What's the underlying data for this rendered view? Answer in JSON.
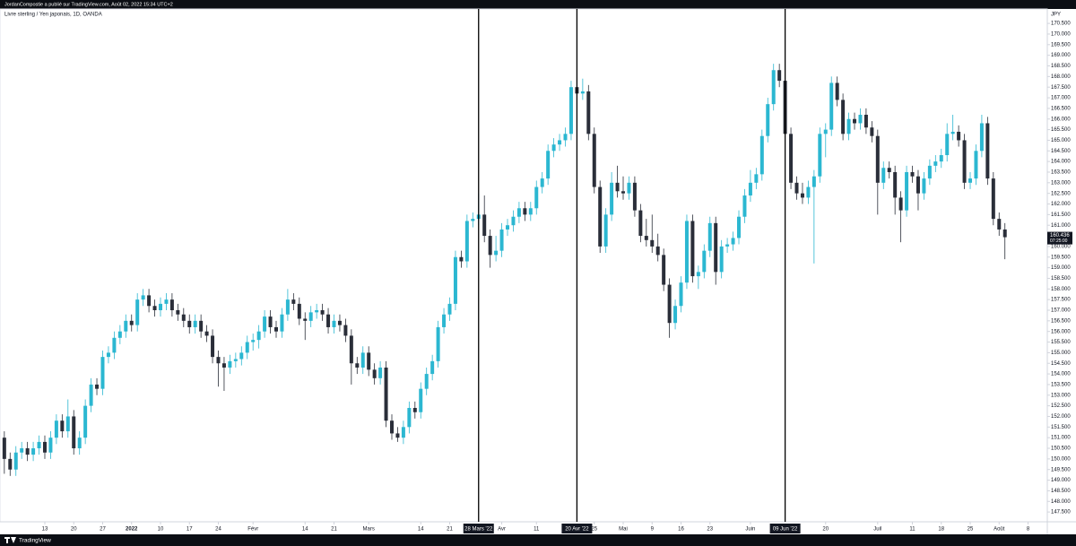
{
  "header": {
    "published": "JordanCompostie a publié sur TradingView.com, Août 02, 2022 15:34 UTC+2",
    "symbol": "Livre sterling / Yen japonais, 1D, OANDA",
    "brand": "TradingView"
  },
  "chart_data": {
    "type": "candlestick",
    "currency": "JPY",
    "up_color": "#2bb7d1",
    "down_color": "#2a2e39",
    "xlim": [
      -0.75,
      180.33
    ],
    "ylim": [
      147.04,
      171.18
    ],
    "yticks": [
      {
        "value": 170.5,
        "label": "170.500"
      },
      {
        "value": 170,
        "label": "170.000"
      },
      {
        "value": 169.5,
        "label": "169.500"
      },
      {
        "value": 169,
        "label": "169.000"
      },
      {
        "value": 168.5,
        "label": "168.500"
      },
      {
        "value": 168,
        "label": "168.000"
      },
      {
        "value": 167.5,
        "label": "167.500"
      },
      {
        "value": 167,
        "label": "167.000"
      },
      {
        "value": 166.5,
        "label": "166.500"
      },
      {
        "value": 166,
        "label": "166.000"
      },
      {
        "value": 165.5,
        "label": "165.500"
      },
      {
        "value": 165,
        "label": "165.000"
      },
      {
        "value": 164.5,
        "label": "164.500"
      },
      {
        "value": 164,
        "label": "164.000"
      },
      {
        "value": 163.5,
        "label": "163.500"
      },
      {
        "value": 163,
        "label": "163.000"
      },
      {
        "value": 162.5,
        "label": "162.500"
      },
      {
        "value": 162,
        "label": "162.000"
      },
      {
        "value": 161.5,
        "label": "161.500"
      },
      {
        "value": 161,
        "label": "161.000"
      },
      {
        "value": 160.5,
        "label": "160.500"
      },
      {
        "value": 160,
        "label": "160.000"
      },
      {
        "value": 159.5,
        "label": "159.500"
      },
      {
        "value": 159,
        "label": "159.000"
      },
      {
        "value": 158.5,
        "label": "158.500"
      },
      {
        "value": 158,
        "label": "158.000"
      },
      {
        "value": 157.5,
        "label": "157.500"
      },
      {
        "value": 157,
        "label": "157.000"
      },
      {
        "value": 156.5,
        "label": "156.500"
      },
      {
        "value": 156,
        "label": "156.000"
      },
      {
        "value": 155.5,
        "label": "155.500"
      },
      {
        "value": 155,
        "label": "155.000"
      },
      {
        "value": 154.5,
        "label": "154.500"
      },
      {
        "value": 154,
        "label": "154.000"
      },
      {
        "value": 153.5,
        "label": "153.500"
      },
      {
        "value": 153,
        "label": "153.000"
      },
      {
        "value": 152.5,
        "label": "152.500"
      },
      {
        "value": 152,
        "label": "152.000"
      },
      {
        "value": 151.5,
        "label": "151.500"
      },
      {
        "value": 151,
        "label": "151.000"
      },
      {
        "value": 150.5,
        "label": "150.500"
      },
      {
        "value": 150,
        "label": "150.000"
      },
      {
        "value": 149.5,
        "label": "149.500"
      },
      {
        "value": 149,
        "label": "149.000"
      },
      {
        "value": 148.5,
        "label": "148.500"
      },
      {
        "value": 148,
        "label": "148.000"
      },
      {
        "value": 147.5,
        "label": "147.500"
      }
    ],
    "xticks": [
      {
        "value": 7,
        "label": "13"
      },
      {
        "value": 12,
        "label": "20"
      },
      {
        "value": 17,
        "label": "27"
      },
      {
        "value": 22,
        "label": "2022"
      },
      {
        "value": 27,
        "label": "10"
      },
      {
        "value": 32,
        "label": "17"
      },
      {
        "value": 37,
        "label": "24"
      },
      {
        "value": 43,
        "label": "Févr"
      },
      {
        "value": 52,
        "label": "14"
      },
      {
        "value": 57,
        "label": "21"
      },
      {
        "value": 63,
        "label": "Mars"
      },
      {
        "value": 72,
        "label": "14"
      },
      {
        "value": 77,
        "label": "21"
      },
      {
        "value": 86,
        "label": "Avr"
      },
      {
        "value": 92,
        "label": "11"
      },
      {
        "value": 102,
        "label": "25"
      },
      {
        "value": 107,
        "label": "Mai"
      },
      {
        "value": 112,
        "label": "9"
      },
      {
        "value": 117,
        "label": "16"
      },
      {
        "value": 122,
        "label": "23"
      },
      {
        "value": 129,
        "label": "Juin"
      },
      {
        "value": 142,
        "label": "20"
      },
      {
        "value": 151,
        "label": "Juil"
      },
      {
        "value": 157,
        "label": "11"
      },
      {
        "value": 162,
        "label": "18"
      },
      {
        "value": 167,
        "label": "25"
      },
      {
        "value": 172,
        "label": "Août"
      },
      {
        "value": 177,
        "label": "8"
      }
    ],
    "markers": [
      {
        "value": 82,
        "label": "28 Mars '22"
      },
      {
        "value": 99,
        "label": "20 Avr '22"
      },
      {
        "value": 135,
        "label": "09 Jun '22"
      }
    ],
    "last_price": 160.436,
    "countdown": "07:25:00",
    "ohlc": [
      [
        151,
        151.3,
        149.3,
        150
      ],
      [
        150,
        150.3,
        149.2,
        149.5
      ],
      [
        149.5,
        150.6,
        149.2,
        150.3
      ],
      [
        150.3,
        150.8,
        150,
        150.5
      ],
      [
        150.5,
        150.8,
        149.9,
        150.2
      ],
      [
        150.2,
        150.8,
        149.9,
        150.5
      ],
      [
        150.5,
        151.1,
        150.2,
        150.8
      ],
      [
        150.8,
        151.1,
        150,
        150.3
      ],
      [
        150.3,
        151.3,
        150,
        151
      ],
      [
        151,
        152.1,
        150.7,
        151.8
      ],
      [
        151.8,
        152.1,
        151,
        151.3
      ],
      [
        151.3,
        152.8,
        151,
        152
      ],
      [
        152,
        152.3,
        150.2,
        150.5
      ],
      [
        150.5,
        151.3,
        150.2,
        151
      ],
      [
        151,
        152.8,
        150.7,
        152.5
      ],
      [
        152.5,
        153.8,
        152.2,
        153.5
      ],
      [
        153.5,
        153.8,
        153,
        153.3
      ],
      [
        153.3,
        155.1,
        153,
        154.8
      ],
      [
        154.8,
        155.3,
        154.5,
        155
      ],
      [
        155,
        156,
        154.7,
        155.7
      ],
      [
        155.7,
        156.3,
        155.4,
        156
      ],
      [
        156,
        156.8,
        155.7,
        156.5
      ],
      [
        156.5,
        156.8,
        156,
        156.3
      ],
      [
        156.3,
        157.8,
        156,
        157.5
      ],
      [
        157.5,
        158,
        157.2,
        157.7
      ],
      [
        157.7,
        158,
        156.9,
        157.2
      ],
      [
        157.2,
        157.5,
        156.7,
        157
      ],
      [
        157,
        157.6,
        156.7,
        157.3
      ],
      [
        157.3,
        157.8,
        157,
        157.5
      ],
      [
        157.5,
        157.8,
        156.7,
        157
      ],
      [
        157,
        157.3,
        156.5,
        156.8
      ],
      [
        156.8,
        157.1,
        156.2,
        156.5
      ],
      [
        156.5,
        156.8,
        155.9,
        156.2
      ],
      [
        156.2,
        156.8,
        155.9,
        156.5
      ],
      [
        156.5,
        156.8,
        155.7,
        156
      ],
      [
        156,
        156.3,
        155.5,
        155.8
      ],
      [
        155.8,
        156.1,
        154.5,
        154.8
      ],
      [
        154.8,
        155.1,
        153.4,
        154.5
      ],
      [
        154.5,
        154.8,
        153.2,
        154.3
      ],
      [
        154.3,
        154.9,
        154,
        154.6
      ],
      [
        154.6,
        155,
        154.3,
        154.7
      ],
      [
        154.7,
        155.3,
        154.4,
        155
      ],
      [
        155,
        155.8,
        154.7,
        155.5
      ],
      [
        155.5,
        155.9,
        155.1,
        155.6
      ],
      [
        155.6,
        156.3,
        155.2,
        156
      ],
      [
        156,
        157,
        155.7,
        156.7
      ],
      [
        156.7,
        157,
        155.9,
        156.2
      ],
      [
        156.2,
        156.5,
        155.7,
        156
      ],
      [
        156,
        157.1,
        155.7,
        156.8
      ],
      [
        156.8,
        158,
        156.5,
        157.5
      ],
      [
        157.5,
        157.8,
        157,
        157.3
      ],
      [
        157.3,
        157.6,
        156.3,
        156.6
      ],
      [
        156.6,
        156.9,
        155.6,
        156.5
      ],
      [
        156.5,
        157.2,
        156.2,
        156.9
      ],
      [
        156.9,
        157.3,
        156.6,
        157
      ],
      [
        157,
        157.3,
        156.5,
        156.8
      ],
      [
        156.8,
        157.1,
        155.9,
        156.2
      ],
      [
        156.2,
        156.8,
        155.9,
        156.5
      ],
      [
        156.5,
        156.8,
        156,
        156.3
      ],
      [
        156.3,
        156.6,
        155.5,
        155.8
      ],
      [
        155.8,
        156.1,
        153.5,
        154.5
      ],
      [
        154.5,
        154.8,
        154,
        154.3
      ],
      [
        154.3,
        155.3,
        154,
        155
      ],
      [
        155,
        155.3,
        153.9,
        154.2
      ],
      [
        154.2,
        154.5,
        153.5,
        153.8
      ],
      [
        153.8,
        154.6,
        153.5,
        154.3
      ],
      [
        154.3,
        154.6,
        151.5,
        151.8
      ],
      [
        151.8,
        152.1,
        150.9,
        151.2
      ],
      [
        151.2,
        151.5,
        150.8,
        151
      ],
      [
        151,
        151.8,
        150.7,
        151.5
      ],
      [
        151.5,
        152.7,
        151.2,
        152.4
      ],
      [
        152.4,
        152.7,
        151.9,
        152.2
      ],
      [
        152.2,
        153.6,
        151.9,
        153.3
      ],
      [
        153.3,
        154.3,
        153,
        154
      ],
      [
        154,
        154.9,
        153.7,
        154.6
      ],
      [
        154.6,
        156.5,
        154.3,
        156.2
      ],
      [
        156.2,
        157.1,
        155.9,
        156.8
      ],
      [
        156.8,
        157.6,
        156.5,
        157.3
      ],
      [
        157.3,
        159.8,
        157,
        159.5
      ],
      [
        159.5,
        159.8,
        159,
        159.3
      ],
      [
        159.3,
        161.5,
        159,
        161.2
      ],
      [
        161.2,
        161.6,
        160.9,
        161.3
      ],
      [
        161.3,
        162.5,
        161,
        161.5
      ],
      [
        161.5,
        162.4,
        160.2,
        160.5
      ],
      [
        160.5,
        160.8,
        159,
        159.6
      ],
      [
        159.6,
        160.5,
        159.3,
        159.8
      ],
      [
        159.8,
        161.1,
        159.5,
        160.8
      ],
      [
        160.8,
        161.3,
        160.5,
        161
      ],
      [
        161,
        161.7,
        160.7,
        161.4
      ],
      [
        161.4,
        162.1,
        161.1,
        161.8
      ],
      [
        161.8,
        162.1,
        161.2,
        161.5
      ],
      [
        161.5,
        162.1,
        161.2,
        161.8
      ],
      [
        161.8,
        163.1,
        161.5,
        162.8
      ],
      [
        162.8,
        163.5,
        162.5,
        163.2
      ],
      [
        163.2,
        164.8,
        162.9,
        164.5
      ],
      [
        164.5,
        165.1,
        164.2,
        164.8
      ],
      [
        164.8,
        165.3,
        164.5,
        165
      ],
      [
        165,
        165.6,
        164.7,
        165.3
      ],
      [
        165.3,
        167.8,
        165,
        167.5
      ],
      [
        167.5,
        167.8,
        166.9,
        167.2
      ],
      [
        167.2,
        167.9,
        166.9,
        167.3
      ],
      [
        167.3,
        167.6,
        165,
        165.3
      ],
      [
        165.3,
        165.6,
        162.5,
        162.8
      ],
      [
        162.8,
        163.1,
        159.7,
        160
      ],
      [
        160,
        161.8,
        159.7,
        161.5
      ],
      [
        161.5,
        163.5,
        161.2,
        163
      ],
      [
        163,
        163.8,
        162.3,
        162.6
      ],
      [
        162.6,
        163.3,
        162.2,
        162.5
      ],
      [
        162.5,
        163.3,
        162.2,
        163
      ],
      [
        163,
        163.3,
        161.4,
        161.7
      ],
      [
        161.7,
        162,
        160.2,
        160.5
      ],
      [
        160.5,
        161.3,
        160,
        160.3
      ],
      [
        160.3,
        161.5,
        159.7,
        160
      ],
      [
        160,
        160.6,
        159.3,
        159.6
      ],
      [
        159.6,
        159.9,
        157.9,
        158.2
      ],
      [
        158.2,
        158.5,
        155.7,
        156.4
      ],
      [
        156.4,
        157.5,
        156.1,
        157.2
      ],
      [
        157.2,
        158.6,
        156.9,
        158.3
      ],
      [
        158.3,
        161.5,
        158,
        161.2
      ],
      [
        161.2,
        161.5,
        158.3,
        158.6
      ],
      [
        158.6,
        159.1,
        158,
        158.8
      ],
      [
        158.8,
        160.1,
        158.5,
        159.8
      ],
      [
        159.8,
        161.4,
        159.5,
        161.1
      ],
      [
        161.1,
        161.4,
        158.2,
        158.8
      ],
      [
        158.8,
        160.3,
        158.5,
        160
      ],
      [
        160,
        160.4,
        159.7,
        160.1
      ],
      [
        160.1,
        160.7,
        159.8,
        160.4
      ],
      [
        160.4,
        161.7,
        160.1,
        161.4
      ],
      [
        161.4,
        162.7,
        161.1,
        162.4
      ],
      [
        162.4,
        163.6,
        162.1,
        163
      ],
      [
        163,
        163.7,
        162.7,
        163.4
      ],
      [
        163.4,
        165.5,
        163.1,
        165.2
      ],
      [
        165.2,
        167,
        164.9,
        166.7
      ],
      [
        166.7,
        168.6,
        166.4,
        168.3
      ],
      [
        168.3,
        168.6,
        167.5,
        167.8
      ],
      [
        167.8,
        168.1,
        165,
        165.3
      ],
      [
        165.3,
        165.6,
        162.7,
        163
      ],
      [
        163,
        163.3,
        162.2,
        162.5
      ],
      [
        162.5,
        163,
        162,
        162.3
      ],
      [
        162.3,
        163.1,
        162,
        162.8
      ],
      [
        162.8,
        163.6,
        159.2,
        163.3
      ],
      [
        163.3,
        165.6,
        163,
        165.3
      ],
      [
        165.3,
        165.8,
        164.2,
        165.5
      ],
      [
        165.5,
        168,
        165.2,
        167.7
      ],
      [
        167.7,
        168,
        166.6,
        166.9
      ],
      [
        166.9,
        167.2,
        165,
        165.3
      ],
      [
        165.3,
        166.3,
        165,
        166
      ],
      [
        166,
        166.3,
        165.5,
        165.8
      ],
      [
        165.8,
        166.5,
        165.5,
        166.2
      ],
      [
        166.2,
        166.5,
        165.3,
        165.6
      ],
      [
        165.6,
        165.9,
        164.9,
        165.2
      ],
      [
        165.2,
        165.5,
        161.5,
        163
      ],
      [
        163,
        164,
        162.7,
        163.7
      ],
      [
        163.7,
        164,
        163.2,
        163.5
      ],
      [
        163.5,
        163.8,
        161.5,
        162.3
      ],
      [
        162.3,
        162.6,
        160.2,
        161.7
      ],
      [
        161.7,
        163.8,
        161.4,
        163.5
      ],
      [
        163.5,
        163.8,
        163,
        163.3
      ],
      [
        163.3,
        163.6,
        161.7,
        162.5
      ],
      [
        162.5,
        163.5,
        162.2,
        163.2
      ],
      [
        163.2,
        164.1,
        162.9,
        163.8
      ],
      [
        163.8,
        164.3,
        163.5,
        164
      ],
      [
        164,
        164.6,
        163.7,
        164.3
      ],
      [
        164.3,
        165.8,
        164,
        165.3
      ],
      [
        165.3,
        166.2,
        165,
        165.4
      ],
      [
        165.4,
        165.7,
        164.7,
        165
      ],
      [
        165,
        165.3,
        162.7,
        163
      ],
      [
        163,
        163.5,
        162.7,
        163.2
      ],
      [
        163.2,
        164.8,
        162.9,
        164.5
      ],
      [
        164.5,
        166.2,
        164.2,
        165.8
      ],
      [
        165.8,
        166.1,
        162.9,
        163.2
      ],
      [
        163.2,
        163.5,
        161,
        161.3
      ],
      [
        161.3,
        161.6,
        160.5,
        160.8
      ],
      [
        160.8,
        161.1,
        159.4,
        160.436
      ]
    ]
  }
}
